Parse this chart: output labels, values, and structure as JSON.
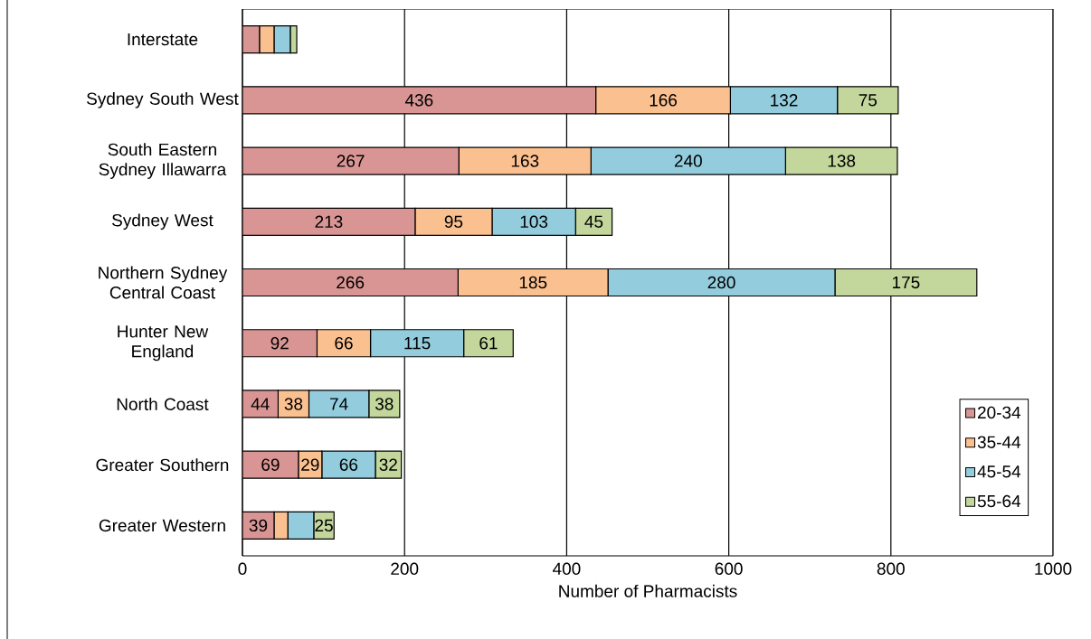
{
  "chart_data": {
    "type": "bar",
    "orientation": "horizontal",
    "stacked": true,
    "xlabel": "Number of Pharmacists",
    "categories": [
      "Interstate",
      "Sydney South West",
      "South Eastern Sydney Illawarra",
      "Sydney West",
      "Northern Sydney Central Coast",
      "Hunter New England",
      "North Coast",
      "Greater Southern",
      "Greater Western"
    ],
    "series": [
      {
        "name": "20-34",
        "color": "#d99594",
        "values": [
          21,
          436,
          267,
          213,
          266,
          92,
          44,
          69,
          39
        ],
        "value_labels": [
          null,
          "436",
          "267",
          "213",
          "266",
          "92",
          "44",
          "69",
          "39"
        ]
      },
      {
        "name": "35-44",
        "color": "#fac090",
        "values": [
          18,
          166,
          163,
          95,
          185,
          66,
          38,
          29,
          17
        ],
        "value_labels": [
          null,
          "166",
          "163",
          "95",
          "185",
          "66",
          "38",
          "29",
          null
        ]
      },
      {
        "name": "45-54",
        "color": "#93cddd",
        "values": [
          20,
          132,
          240,
          103,
          280,
          115,
          74,
          66,
          32
        ],
        "value_labels": [
          null,
          "132",
          "240",
          "103",
          "280",
          "115",
          "74",
          "66",
          null
        ]
      },
      {
        "name": "55-64",
        "color": "#c3d69b",
        "values": [
          8,
          75,
          138,
          45,
          175,
          61,
          38,
          32,
          25
        ],
        "value_labels": [
          null,
          "75",
          "138",
          "45",
          "175",
          "61",
          "38",
          "32",
          "25"
        ]
      }
    ],
    "xlim": [
      0,
      1000
    ],
    "xticks": [
      0,
      200,
      400,
      600,
      800,
      1000
    ],
    "grid": "x",
    "legend": "right"
  }
}
